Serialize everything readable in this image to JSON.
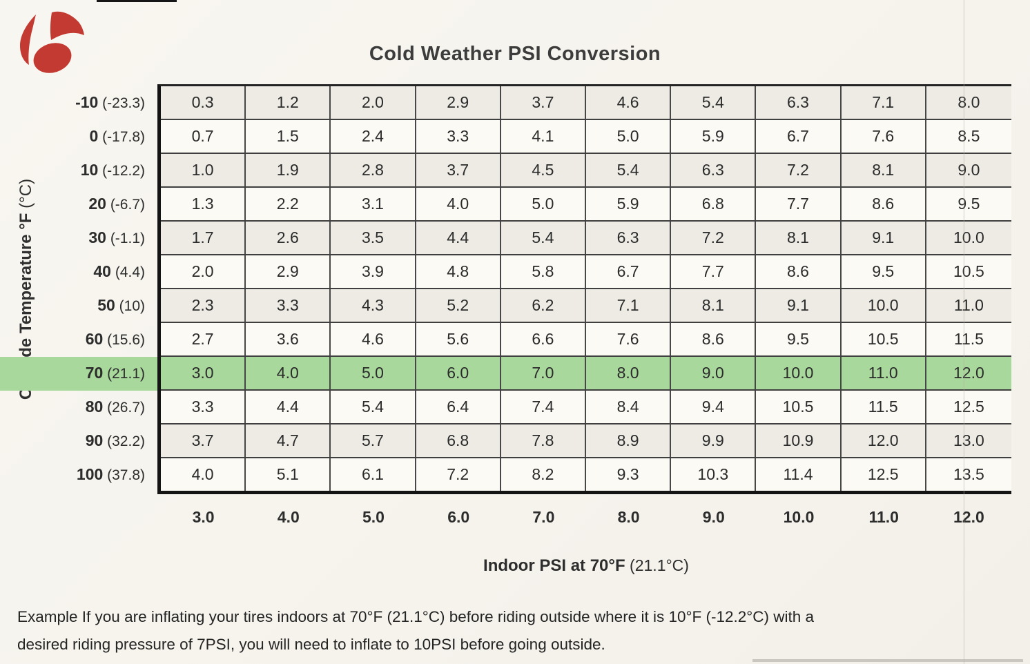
{
  "title": "Cold Weather PSI Conversion",
  "logo": {
    "name": "bontrager-logo",
    "color": "#c23a31"
  },
  "chart_data": {
    "type": "table",
    "title": "Cold Weather PSI Conversion",
    "rows_label": {
      "bold": "Outside Temperature °F",
      "regular": " (°C)"
    },
    "cols_label": {
      "bold": "Indoor PSI at 70°F",
      "regular": " (21.1°C)"
    },
    "col_ticks": [
      "3.0",
      "4.0",
      "5.0",
      "6.0",
      "7.0",
      "8.0",
      "9.0",
      "10.0",
      "11.0",
      "12.0"
    ],
    "highlight_color": "#a8d89b",
    "highlighted_row_f": "70",
    "rows": [
      {
        "f": "-10",
        "c": "(-23.3)",
        "highlight": false,
        "values": [
          "0.3",
          "1.2",
          "2.0",
          "2.9",
          "3.7",
          "4.6",
          "5.4",
          "6.3",
          "7.1",
          "8.0"
        ]
      },
      {
        "f": "0",
        "c": "(-17.8)",
        "highlight": false,
        "values": [
          "0.7",
          "1.5",
          "2.4",
          "3.3",
          "4.1",
          "5.0",
          "5.9",
          "6.7",
          "7.6",
          "8.5"
        ]
      },
      {
        "f": "10",
        "c": "(-12.2)",
        "highlight": false,
        "values": [
          "1.0",
          "1.9",
          "2.8",
          "3.7",
          "4.5",
          "5.4",
          "6.3",
          "7.2",
          "8.1",
          "9.0"
        ]
      },
      {
        "f": "20",
        "c": "(-6.7)",
        "highlight": false,
        "values": [
          "1.3",
          "2.2",
          "3.1",
          "4.0",
          "5.0",
          "5.9",
          "6.8",
          "7.7",
          "8.6",
          "9.5"
        ]
      },
      {
        "f": "30",
        "c": "(-1.1)",
        "highlight": false,
        "values": [
          "1.7",
          "2.6",
          "3.5",
          "4.4",
          "5.4",
          "6.3",
          "7.2",
          "8.1",
          "9.1",
          "10.0"
        ]
      },
      {
        "f": "40",
        "c": "(4.4)",
        "highlight": false,
        "values": [
          "2.0",
          "2.9",
          "3.9",
          "4.8",
          "5.8",
          "6.7",
          "7.7",
          "8.6",
          "9.5",
          "10.5"
        ]
      },
      {
        "f": "50",
        "c": "(10)",
        "highlight": false,
        "values": [
          "2.3",
          "3.3",
          "4.3",
          "5.2",
          "6.2",
          "7.1",
          "8.1",
          "9.1",
          "10.0",
          "11.0"
        ]
      },
      {
        "f": "60",
        "c": "(15.6)",
        "highlight": false,
        "values": [
          "2.7",
          "3.6",
          "4.6",
          "5.6",
          "6.6",
          "7.6",
          "8.6",
          "9.5",
          "10.5",
          "11.5"
        ]
      },
      {
        "f": "70",
        "c": "(21.1)",
        "highlight": true,
        "values": [
          "3.0",
          "4.0",
          "5.0",
          "6.0",
          "7.0",
          "8.0",
          "9.0",
          "10.0",
          "11.0",
          "12.0"
        ]
      },
      {
        "f": "80",
        "c": "(26.7)",
        "highlight": false,
        "values": [
          "3.3",
          "4.4",
          "5.4",
          "6.4",
          "7.4",
          "8.4",
          "9.4",
          "10.5",
          "11.5",
          "12.5"
        ]
      },
      {
        "f": "90",
        "c": "(32.2)",
        "highlight": false,
        "values": [
          "3.7",
          "4.7",
          "5.7",
          "6.8",
          "7.8",
          "8.9",
          "9.9",
          "10.9",
          "12.0",
          "13.0"
        ]
      },
      {
        "f": "100",
        "c": "(37.8)",
        "highlight": false,
        "values": [
          "4.0",
          "5.1",
          "6.1",
          "7.2",
          "8.2",
          "9.3",
          "10.3",
          "11.4",
          "12.5",
          "13.5"
        ]
      }
    ]
  },
  "example": {
    "lines": [
      "Example  If you are inflating your tires indoors at 70°F (21.1°C) before riding outside where it is 10°F (-12.2°C) with a",
      "desired riding pressure of 7PSI, you will need to inflate to 10PSI before going outside."
    ]
  }
}
